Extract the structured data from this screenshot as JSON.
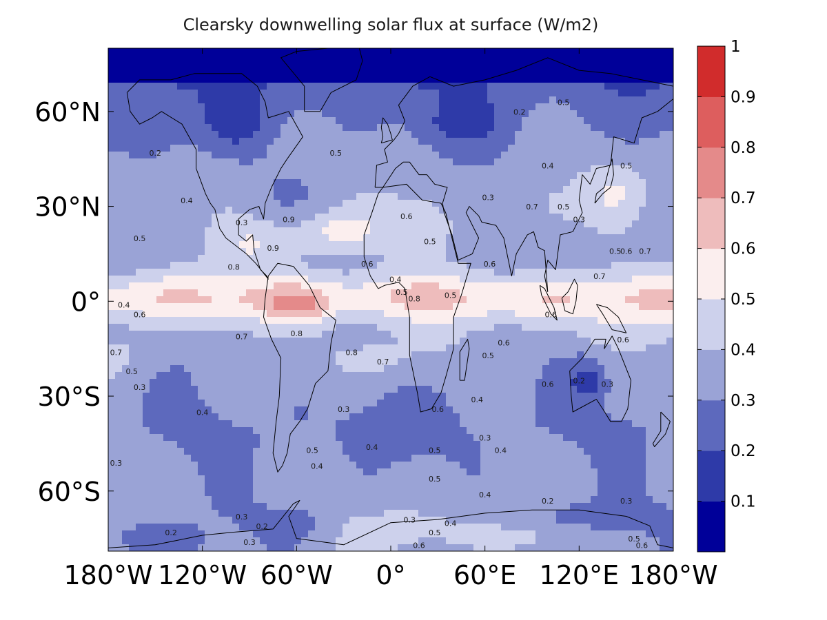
{
  "colors": {
    "c0": "#000099",
    "c1": "#2e3aa8",
    "c2": "#5d69bd",
    "c3": "#9aa3d6",
    "c4": "#cdd1ec",
    "c5": "#fbeeee",
    "c6": "#eebcbc",
    "c7": "#e48a8a",
    "c8": "#dd5e5e",
    "c9": "#d12c2c"
  },
  "chart_data": {
    "type": "heatmap",
    "title": "Clearsky downwelling solar flux at surface (W/m2)",
    "x_ticks": [
      {
        "value": -180,
        "label": "180°W"
      },
      {
        "value": -120,
        "label": "120°W"
      },
      {
        "value": -60,
        "label": "60°W"
      },
      {
        "value": 0,
        "label": "0°"
      },
      {
        "value": 60,
        "label": "60°E"
      },
      {
        "value": 120,
        "label": "120°E"
      },
      {
        "value": 180,
        "label": "180°W"
      }
    ],
    "y_ticks": [
      {
        "value": 60,
        "label": "60°N"
      },
      {
        "value": 30,
        "label": "30°N"
      },
      {
        "value": 0,
        "label": "0°"
      },
      {
        "value": -30,
        "label": "30°S"
      },
      {
        "value": -60,
        "label": "60°S"
      }
    ],
    "xlim": [
      -180,
      180
    ],
    "ylim": [
      -79,
      80
    ],
    "colorbar": {
      "min": 0,
      "max": 1,
      "levels": [
        0,
        0.1,
        0.2,
        0.3,
        0.4,
        0.5,
        0.6,
        0.7,
        0.8,
        0.9,
        1
      ],
      "labels": [
        "0.1",
        "0.2",
        "0.3",
        "0.4",
        "0.5",
        "0.6",
        "0.7",
        "0.8",
        "0.9",
        "1"
      ],
      "label_values": [
        0.1,
        0.2,
        0.3,
        0.4,
        0.5,
        0.6,
        0.7,
        0.8,
        0.9,
        1.0
      ]
    },
    "no_data_band": {
      "from_lat": 70,
      "to_lat": 80
    },
    "contour_labels": [
      {
        "lon": -150,
        "lat": 46,
        "text": "0.2"
      },
      {
        "lon": -130,
        "lat": 31,
        "text": "0.4"
      },
      {
        "lon": -160,
        "lat": 19,
        "text": "0.5"
      },
      {
        "lon": -95,
        "lat": 24,
        "text": "0.3"
      },
      {
        "lon": -65,
        "lat": 25,
        "text": "0.9"
      },
      {
        "lon": -75,
        "lat": 16,
        "text": "0.9"
      },
      {
        "lon": -100,
        "lat": 10,
        "text": "0.8"
      },
      {
        "lon": -35,
        "lat": 46,
        "text": "0.5"
      },
      {
        "lon": -160,
        "lat": -5,
        "text": "0.6"
      },
      {
        "lon": -170,
        "lat": -2,
        "text": "0.4"
      },
      {
        "lon": -95,
        "lat": -12,
        "text": "0.7"
      },
      {
        "lon": -175,
        "lat": -17,
        "text": "0.7"
      },
      {
        "lon": -165,
        "lat": -23,
        "text": "0.5"
      },
      {
        "lon": -160,
        "lat": -28,
        "text": "0.3"
      },
      {
        "lon": -60,
        "lat": -11,
        "text": "0.8"
      },
      {
        "lon": -25,
        "lat": -17,
        "text": "0.8"
      },
      {
        "lon": -5,
        "lat": -20,
        "text": "0.7"
      },
      {
        "lon": -120,
        "lat": -36,
        "text": "0.4"
      },
      {
        "lon": -30,
        "lat": -35,
        "text": "0.3"
      },
      {
        "lon": 10,
        "lat": 26,
        "text": "0.6"
      },
      {
        "lon": 25,
        "lat": 18,
        "text": "0.5"
      },
      {
        "lon": -15,
        "lat": 11,
        "text": "0.6"
      },
      {
        "lon": 3,
        "lat": 6,
        "text": "0.4"
      },
      {
        "lon": 7,
        "lat": 2,
        "text": "0.5"
      },
      {
        "lon": 15,
        "lat": 0,
        "text": "0.8"
      },
      {
        "lon": 38,
        "lat": 1,
        "text": "0.5"
      },
      {
        "lon": 63,
        "lat": 11,
        "text": "0.6"
      },
      {
        "lon": 62,
        "lat": 32,
        "text": "0.3"
      },
      {
        "lon": 90,
        "lat": 29,
        "text": "0.7"
      },
      {
        "lon": 110,
        "lat": 29,
        "text": "0.5"
      },
      {
        "lon": 120,
        "lat": 25,
        "text": "0.3"
      },
      {
        "lon": 143,
        "lat": 15,
        "text": "0.5"
      },
      {
        "lon": 150,
        "lat": 15,
        "text": "0.6"
      },
      {
        "lon": 162,
        "lat": 15,
        "text": "0.7"
      },
      {
        "lon": 133,
        "lat": 7,
        "text": "0.7"
      },
      {
        "lon": 82,
        "lat": 59,
        "text": "0.2"
      },
      {
        "lon": 110,
        "lat": 62,
        "text": "0.5"
      },
      {
        "lon": 100,
        "lat": 42,
        "text": "0.4"
      },
      {
        "lon": 150,
        "lat": 42,
        "text": "0.5"
      },
      {
        "lon": 72,
        "lat": -14,
        "text": "0.6"
      },
      {
        "lon": 62,
        "lat": -18,
        "text": "0.5"
      },
      {
        "lon": 102,
        "lat": -5,
        "text": "0.6"
      },
      {
        "lon": 148,
        "lat": -13,
        "text": "0.6"
      },
      {
        "lon": 100,
        "lat": -27,
        "text": "0.6"
      },
      {
        "lon": 120,
        "lat": -26,
        "text": "0.2"
      },
      {
        "lon": 138,
        "lat": -27,
        "text": "0.3"
      },
      {
        "lon": 55,
        "lat": -32,
        "text": "0.4"
      },
      {
        "lon": 30,
        "lat": -35,
        "text": "0.6"
      },
      {
        "lon": 60,
        "lat": -44,
        "text": "0.3"
      },
      {
        "lon": 70,
        "lat": -48,
        "text": "0.4"
      },
      {
        "lon": 28,
        "lat": -48,
        "text": "0.5"
      },
      {
        "lon": -12,
        "lat": -47,
        "text": "0.4"
      },
      {
        "lon": 28,
        "lat": -57,
        "text": "0.5"
      },
      {
        "lon": 60,
        "lat": -62,
        "text": "0.4"
      },
      {
        "lon": -50,
        "lat": -48,
        "text": "0.5"
      },
      {
        "lon": -47,
        "lat": -53,
        "text": "0.4"
      },
      {
        "lon": -175,
        "lat": -52,
        "text": "0.3"
      },
      {
        "lon": -95,
        "lat": -69,
        "text": "0.3"
      },
      {
        "lon": -82,
        "lat": -72,
        "text": "0.2"
      },
      {
        "lon": -140,
        "lat": -74,
        "text": "0.2"
      },
      {
        "lon": -90,
        "lat": -77,
        "text": "0.3"
      },
      {
        "lon": 12,
        "lat": -70,
        "text": "0.3"
      },
      {
        "lon": 38,
        "lat": -71,
        "text": "0.4"
      },
      {
        "lon": 28,
        "lat": -74,
        "text": "0.5"
      },
      {
        "lon": 18,
        "lat": -78,
        "text": "0.6"
      },
      {
        "lon": 100,
        "lat": -64,
        "text": "0.2"
      },
      {
        "lon": 150,
        "lat": -64,
        "text": "0.3"
      },
      {
        "lon": 155,
        "lat": -76,
        "text": "0.5"
      },
      {
        "lon": 160,
        "lat": -78,
        "text": "0.6"
      }
    ]
  }
}
